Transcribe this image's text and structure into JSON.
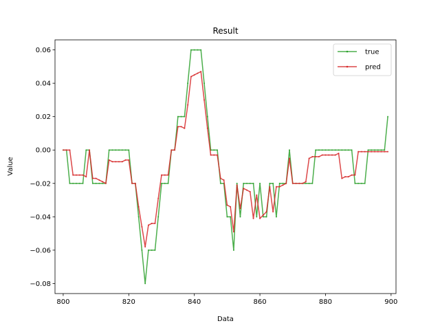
{
  "chart_data": {
    "type": "line",
    "title": "Result",
    "xlabel": "Data",
    "ylabel": "Value",
    "xlim": [
      797.5,
      901.5
    ],
    "ylim": [
      -0.086,
      0.066
    ],
    "x_ticks": [
      800,
      820,
      840,
      860,
      880,
      900
    ],
    "y_ticks": [
      -0.08,
      -0.06,
      -0.04,
      -0.02,
      0.0,
      0.02,
      0.04,
      0.06
    ],
    "y_tick_labels": [
      "−0.08",
      "−0.06",
      "−0.04",
      "−0.02",
      "0.00",
      "0.02",
      "0.04",
      "0.06"
    ],
    "legend_position": "top-right",
    "x": [
      800,
      801,
      802,
      803,
      804,
      805,
      806,
      807,
      808,
      809,
      810,
      811,
      812,
      813,
      814,
      815,
      816,
      817,
      818,
      819,
      820,
      821,
      822,
      823,
      824,
      825,
      826,
      827,
      828,
      829,
      830,
      831,
      832,
      833,
      834,
      835,
      836,
      837,
      838,
      839,
      840,
      841,
      842,
      843,
      844,
      845,
      846,
      847,
      848,
      849,
      850,
      851,
      852,
      853,
      854,
      855,
      856,
      857,
      858,
      859,
      860,
      861,
      862,
      863,
      864,
      865,
      866,
      867,
      868,
      869,
      870,
      871,
      872,
      873,
      874,
      875,
      876,
      877,
      878,
      879,
      880,
      881,
      882,
      883,
      884,
      885,
      886,
      887,
      888,
      889,
      890,
      891,
      892,
      893,
      894,
      895,
      896,
      897,
      898,
      899
    ],
    "series": [
      {
        "name": "true",
        "color": "#2ca02c",
        "values": [
          0,
          0,
          -0.02,
          -0.02,
          -0.02,
          -0.02,
          -0.02,
          0,
          0,
          -0.02,
          -0.02,
          -0.02,
          -0.02,
          -0.02,
          0,
          0,
          0,
          0,
          0,
          0,
          0,
          -0.02,
          -0.02,
          -0.04,
          -0.06,
          -0.08,
          -0.06,
          -0.06,
          -0.06,
          -0.04,
          -0.02,
          -0.02,
          -0.02,
          0,
          0,
          0.02,
          0.02,
          0.02,
          0.04,
          0.06,
          0.06,
          0.06,
          0.06,
          0.04,
          0.02,
          0,
          0,
          0,
          -0.02,
          -0.02,
          -0.04,
          -0.04,
          -0.06,
          -0.02,
          -0.04,
          -0.02,
          -0.02,
          -0.02,
          -0.02,
          -0.04,
          -0.02,
          -0.04,
          -0.04,
          -0.02,
          -0.02,
          -0.04,
          -0.02,
          -0.02,
          -0.02,
          0,
          -0.02,
          -0.02,
          -0.02,
          -0.02,
          -0.02,
          -0.02,
          -0.02,
          0,
          0,
          0,
          0,
          0,
          0,
          0,
          0,
          0,
          0,
          0,
          0,
          -0.02,
          -0.02,
          -0.02,
          -0.02,
          0,
          0,
          0,
          0,
          0,
          0,
          0.02
        ]
      },
      {
        "name": "pred",
        "color": "#d62728",
        "values": [
          0,
          0,
          0,
          -0.015,
          -0.015,
          -0.015,
          -0.015,
          -0.016,
          0,
          -0.017,
          -0.017,
          -0.018,
          -0.019,
          -0.02,
          -0.006,
          -0.007,
          -0.007,
          -0.007,
          -0.007,
          -0.006,
          -0.006,
          -0.02,
          -0.02,
          -0.034,
          -0.046,
          -0.058,
          -0.045,
          -0.044,
          -0.044,
          -0.029,
          -0.015,
          -0.015,
          -0.015,
          0,
          0,
          0.014,
          0.014,
          0.013,
          0.027,
          0.044,
          0.045,
          0.046,
          0.047,
          0.03,
          0.013,
          -0.003,
          -0.003,
          -0.003,
          -0.017,
          -0.018,
          -0.033,
          -0.034,
          -0.049,
          -0.021,
          -0.035,
          -0.023,
          -0.024,
          -0.025,
          -0.041,
          -0.027,
          -0.041,
          -0.039,
          -0.037,
          -0.022,
          -0.037,
          -0.022,
          -0.022,
          -0.021,
          -0.02,
          -0.005,
          -0.02,
          -0.02,
          -0.02,
          -0.02,
          -0.019,
          -0.005,
          -0.004,
          -0.004,
          -0.004,
          -0.003,
          -0.003,
          -0.003,
          -0.003,
          -0.003,
          -0.002,
          -0.017,
          -0.016,
          -0.016,
          -0.015,
          -0.015,
          -0.001,
          -0.001,
          -0.001,
          -0.001,
          -0.001,
          -0.001,
          -0.001,
          -0.001,
          -0.001,
          -0.001
        ]
      }
    ]
  }
}
